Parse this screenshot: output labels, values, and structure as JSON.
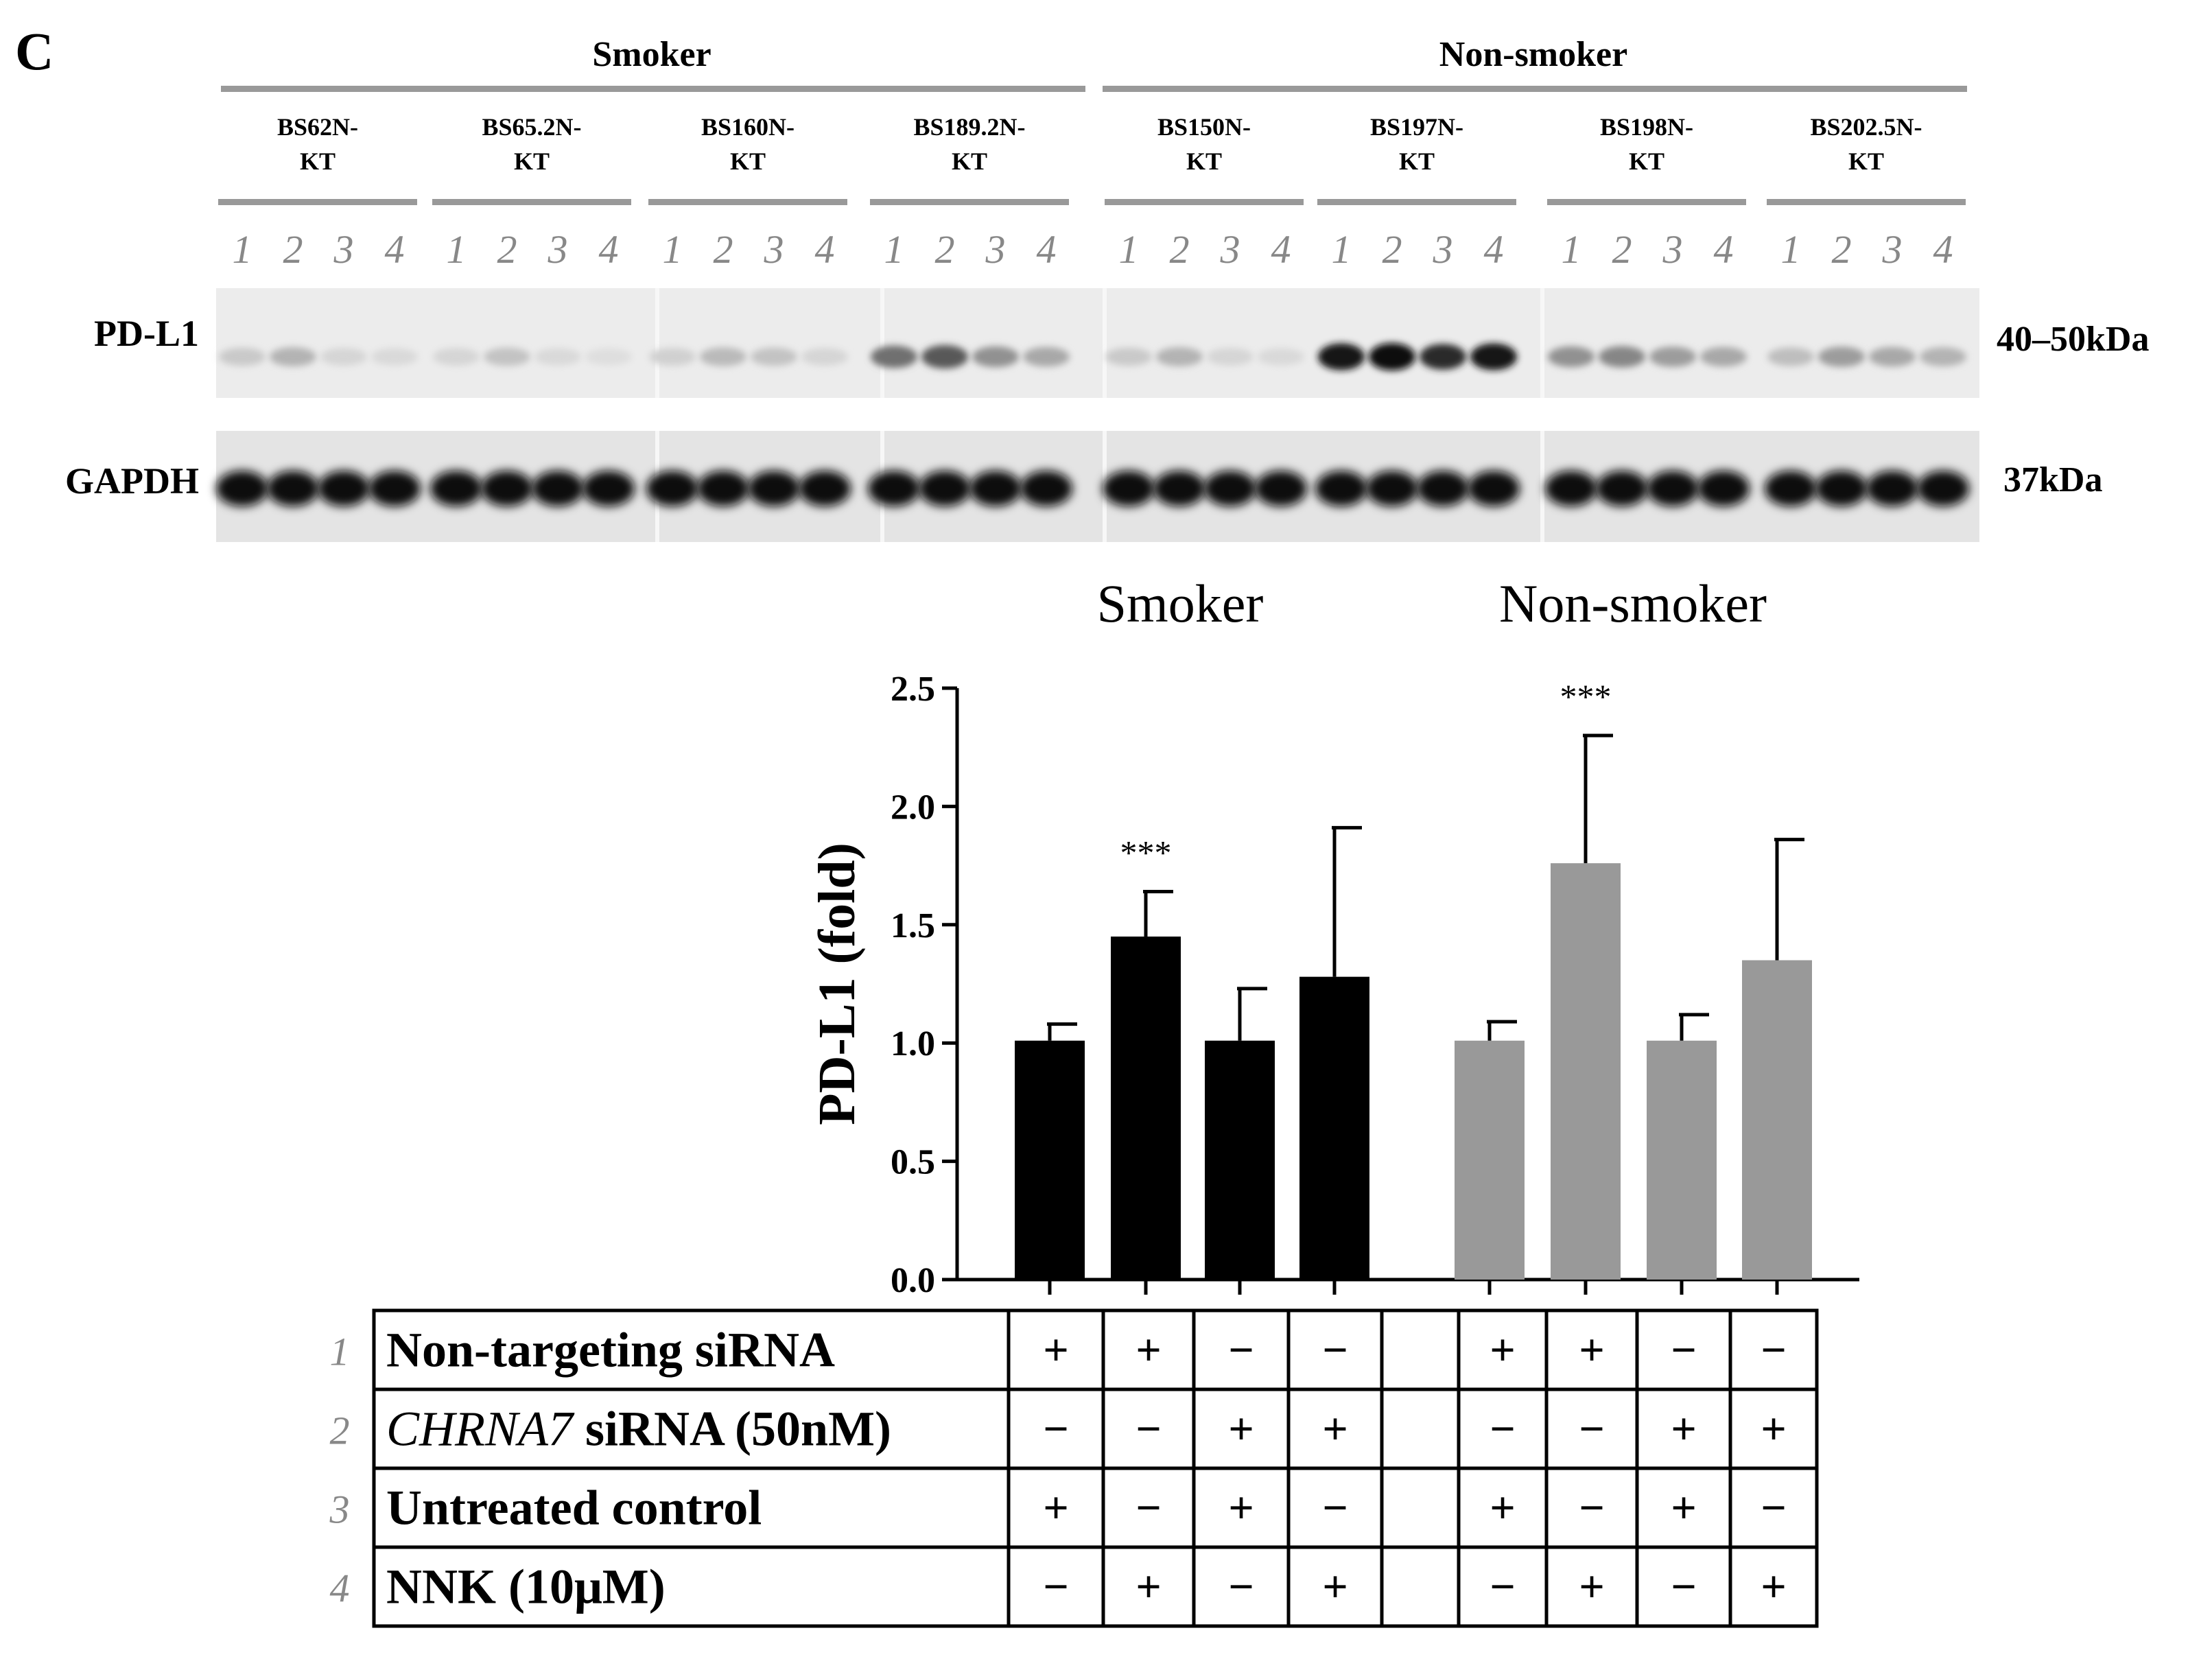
{
  "panel_letter": "C",
  "western_blot": {
    "groups": [
      {
        "name": "Smoker",
        "samples": [
          "BS62N-\nKT",
          "BS65.2N-\nKT",
          "BS160N-\nKT",
          "BS189.2N-\nKT"
        ]
      },
      {
        "name": "Non-smoker",
        "samples": [
          "BS150N-\nKT",
          "BS197N-\nKT",
          "BS198N-\nKT",
          "BS202.5N-\nKT"
        ]
      }
    ],
    "lane_numbers": [
      "1",
      "2",
      "3",
      "4"
    ],
    "bands": [
      {
        "protein": "PD-L1",
        "size": "40–50kDa"
      },
      {
        "protein": "GAPDH",
        "size": "37kDa"
      }
    ],
    "pdl1_band_intensity": [
      [
        0.15,
        0.25,
        0.1,
        0.08
      ],
      [
        0.1,
        0.18,
        0.08,
        0.06
      ],
      [
        0.12,
        0.22,
        0.18,
        0.1
      ],
      [
        0.55,
        0.65,
        0.4,
        0.3
      ],
      [
        0.15,
        0.25,
        0.1,
        0.08
      ],
      [
        0.95,
        1.0,
        0.85,
        0.95
      ],
      [
        0.4,
        0.45,
        0.35,
        0.3
      ],
      [
        0.2,
        0.35,
        0.3,
        0.25
      ]
    ]
  },
  "chart_data": {
    "type": "bar",
    "ylabel": "PD-L1 (fold)",
    "ylim": [
      0,
      2.5
    ],
    "yticks": [
      "0.0",
      "0.5",
      "1.0",
      "1.5",
      "2.0",
      "2.5"
    ],
    "grid": false,
    "series": [
      {
        "name": "Smoker",
        "color": "#000000",
        "values": [
          1.01,
          1.45,
          1.01,
          1.28
        ],
        "errors": [
          0.07,
          0.19,
          0.22,
          0.63
        ],
        "annotations": [
          "",
          "***",
          "",
          ""
        ]
      },
      {
        "name": "Non-smoker",
        "color": "#999999",
        "values": [
          1.01,
          1.76,
          1.01,
          1.35
        ],
        "errors": [
          0.08,
          0.54,
          0.11,
          0.51
        ],
        "annotations": [
          "",
          "***",
          "",
          ""
        ]
      }
    ]
  },
  "treatment_table": {
    "rows": [
      {
        "num": "1",
        "label": "Non-targeting siRNA",
        "cells": [
          "+",
          "+",
          "−",
          "−",
          "",
          "+",
          "+",
          "−",
          "−"
        ]
      },
      {
        "num": "2",
        "label_italic": "CHRNA7",
        "label": " siRNA (50nM)",
        "cells": [
          "−",
          "−",
          "+",
          "+",
          "",
          "−",
          "−",
          "+",
          "+"
        ]
      },
      {
        "num": "3",
        "label": "Untreated control",
        "cells": [
          "+",
          "−",
          "+",
          "−",
          "",
          "+",
          "−",
          "+",
          "−"
        ]
      },
      {
        "num": "4",
        "label": "NNK (10μM)",
        "cells": [
          "−",
          "+",
          "−",
          "+",
          "",
          "−",
          "+",
          "−",
          "+"
        ]
      }
    ]
  }
}
